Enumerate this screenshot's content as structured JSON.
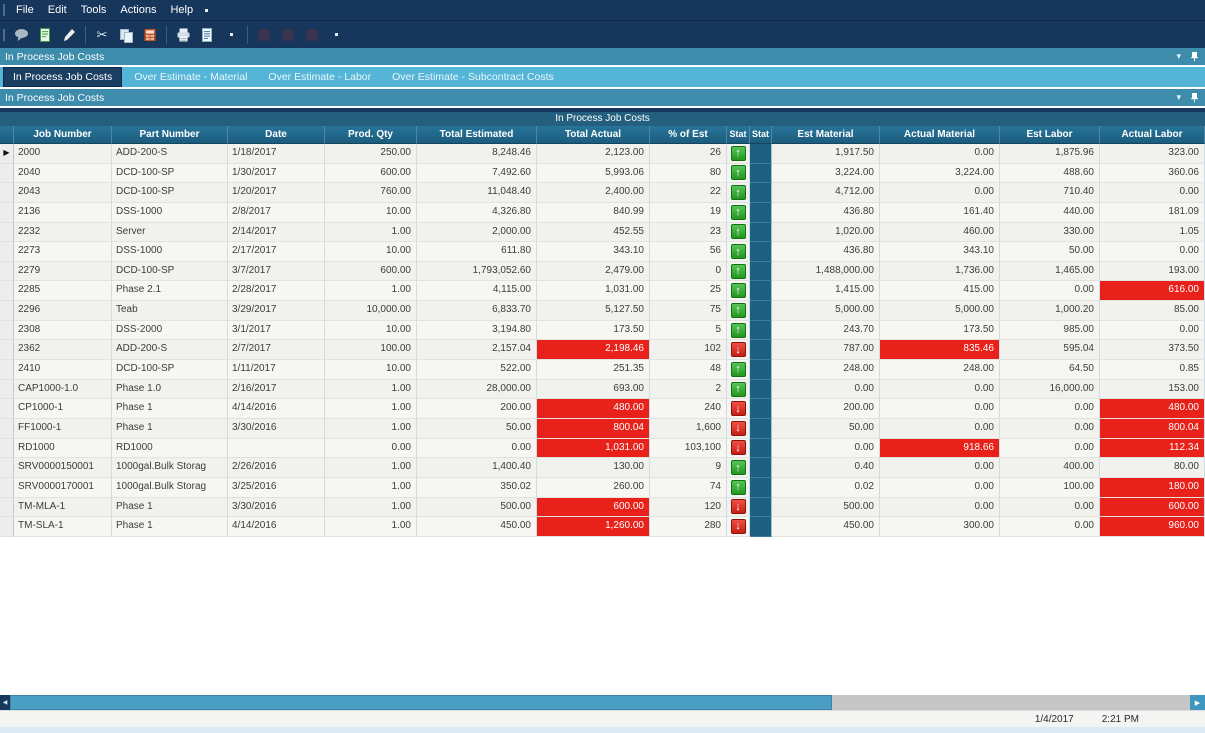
{
  "menu": {
    "items": [
      "File",
      "Edit",
      "Tools",
      "Actions",
      "Help"
    ]
  },
  "toolbar": {
    "icons": [
      "comment-icon",
      "new-record-icon",
      "edit-icon",
      "separator",
      "cut-icon",
      "copy-icon",
      "paste-icon",
      "separator",
      "print-icon",
      "preview-icon",
      "overflow-dot",
      "separator",
      "disabled-icon",
      "disabled-icon",
      "disabled-icon",
      "overflow-dot"
    ]
  },
  "panels": {
    "outer_title": "In Process Job Costs",
    "inner_title": "In Process Job Costs"
  },
  "tabs": [
    {
      "label": "In Process Job Costs",
      "active": true
    },
    {
      "label": "Over Estimate - Material",
      "active": false
    },
    {
      "label": "Over Estimate - Labor",
      "active": false
    },
    {
      "label": "Over Estimate - Subcontract Costs",
      "active": false
    }
  ],
  "grid": {
    "group_title": "In Process Job Costs",
    "columns": [
      "Job Number",
      "Part Number",
      "Date",
      "Prod. Qty",
      "Total Estimated",
      "Total Actual",
      "% of Est",
      "Stat",
      "Stat",
      "Est Material",
      "Actual Material",
      "Est Labor",
      "Actual Labor"
    ],
    "rows": [
      {
        "job": "2000",
        "part": "ADD-200-S",
        "date": "1/18/2017",
        "qty": "250.00",
        "total_est": "8,248.46",
        "total_act": "2,123.00",
        "pct": "26",
        "stat": "up",
        "est_mat": "1,917.50",
        "act_mat": "0.00",
        "est_lab": "1,875.96",
        "act_lab": "323.00",
        "selected": true
      },
      {
        "job": "2040",
        "part": "DCD-100-SP",
        "date": "1/30/2017",
        "qty": "600.00",
        "total_est": "7,492.60",
        "total_act": "5,993.06",
        "pct": "80",
        "stat": "up",
        "est_mat": "3,224.00",
        "act_mat": "3,224.00",
        "est_lab": "488.60",
        "act_lab": "360.06"
      },
      {
        "job": "2043",
        "part": "DCD-100-SP",
        "date": "1/20/2017",
        "qty": "760.00",
        "total_est": "11,048.40",
        "total_act": "2,400.00",
        "pct": "22",
        "stat": "up",
        "est_mat": "4,712.00",
        "act_mat": "0.00",
        "est_lab": "710.40",
        "act_lab": "0.00"
      },
      {
        "job": "2136",
        "part": "DSS-1000",
        "date": "2/8/2017",
        "qty": "10.00",
        "total_est": "4,326.80",
        "total_act": "840.99",
        "pct": "19",
        "stat": "up",
        "est_mat": "436.80",
        "act_mat": "161.40",
        "est_lab": "440.00",
        "act_lab": "181.09"
      },
      {
        "job": "2232",
        "part": "Server",
        "date": "2/14/2017",
        "qty": "1.00",
        "total_est": "2,000.00",
        "total_act": "452.55",
        "pct": "23",
        "stat": "up",
        "est_mat": "1,020.00",
        "act_mat": "460.00",
        "est_lab": "330.00",
        "act_lab": "1.05"
      },
      {
        "job": "2273",
        "part": "DSS-1000",
        "date": "2/17/2017",
        "qty": "10.00",
        "total_est": "611.80",
        "total_act": "343.10",
        "pct": "56",
        "stat": "up",
        "est_mat": "436.80",
        "act_mat": "343.10",
        "est_lab": "50.00",
        "act_lab": "0.00"
      },
      {
        "job": "2279",
        "part": "DCD-100-SP",
        "date": "3/7/2017",
        "qty": "600.00",
        "total_est": "1,793,052.60",
        "total_act": "2,479.00",
        "pct": "0",
        "stat": "up",
        "est_mat": "1,488,000.00",
        "act_mat": "1,736.00",
        "est_lab": "1,465.00",
        "act_lab": "193.00"
      },
      {
        "job": "2285",
        "part": "Phase 2.1",
        "date": "2/28/2017",
        "qty": "1.00",
        "total_est": "4,115.00",
        "total_act": "1,031.00",
        "pct": "25",
        "stat": "up",
        "est_mat": "1,415.00",
        "act_mat": "415.00",
        "est_lab": "0.00",
        "act_lab": "616.00",
        "act_lab_red": true
      },
      {
        "job": "2296",
        "part": "Teab",
        "date": "3/29/2017",
        "qty": "10,000.00",
        "total_est": "6,833.70",
        "total_act": "5,127.50",
        "pct": "75",
        "stat": "up",
        "est_mat": "5,000.00",
        "act_mat": "5,000.00",
        "est_lab": "1,000.20",
        "act_lab": "85.00"
      },
      {
        "job": "2308",
        "part": "DSS-2000",
        "date": "3/1/2017",
        "qty": "10.00",
        "total_est": "3,194.80",
        "total_act": "173.50",
        "pct": "5",
        "stat": "up",
        "est_mat": "243.70",
        "act_mat": "173.50",
        "est_lab": "985.00",
        "act_lab": "0.00"
      },
      {
        "job": "2362",
        "part": "ADD-200-S",
        "date": "2/7/2017",
        "qty": "100.00",
        "total_est": "2,157.04",
        "total_act": "2,198.46",
        "total_act_red": true,
        "pct": "102",
        "stat": "down",
        "est_mat": "787.00",
        "act_mat": "835.46",
        "act_mat_red": true,
        "est_lab": "595.04",
        "act_lab": "373.50"
      },
      {
        "job": "2410",
        "part": "DCD-100-SP",
        "date": "1/11/2017",
        "qty": "10.00",
        "total_est": "522.00",
        "total_act": "251.35",
        "pct": "48",
        "stat": "up",
        "est_mat": "248.00",
        "act_mat": "248.00",
        "est_lab": "64.50",
        "act_lab": "0.85"
      },
      {
        "job": "CAP1000-1.0",
        "part": "Phase 1.0",
        "date": "2/16/2017",
        "qty": "1.00",
        "total_est": "28,000.00",
        "total_act": "693.00",
        "pct": "2",
        "stat": "up",
        "est_mat": "0.00",
        "act_mat": "0.00",
        "est_lab": "16,000.00",
        "act_lab": "153.00"
      },
      {
        "job": "CP1000-1",
        "part": "Phase 1",
        "date": "4/14/2016",
        "qty": "1.00",
        "total_est": "200.00",
        "total_act": "480.00",
        "total_act_red": true,
        "pct": "240",
        "stat": "down",
        "est_mat": "200.00",
        "act_mat": "0.00",
        "est_lab": "0.00",
        "act_lab": "480.00",
        "act_lab_red": true
      },
      {
        "job": "FF1000-1",
        "part": "Phase 1",
        "date": "3/30/2016",
        "qty": "1.00",
        "total_est": "50.00",
        "total_act": "800.04",
        "total_act_red": true,
        "pct": "1,600",
        "stat": "down",
        "est_mat": "50.00",
        "act_mat": "0.00",
        "est_lab": "0.00",
        "act_lab": "800.04",
        "act_lab_red": true
      },
      {
        "job": "RD1000",
        "part": "RD1000",
        "date": "",
        "qty": "0.00",
        "total_est": "0.00",
        "total_act": "1,031.00",
        "total_act_red": true,
        "pct": "103,100",
        "stat": "down",
        "est_mat": "0.00",
        "act_mat": "918.66",
        "act_mat_red": true,
        "est_lab": "0.00",
        "act_lab": "112.34",
        "act_lab_red": true
      },
      {
        "job": "SRV0000150001",
        "part": "1000gal.Bulk Storag",
        "date": "2/26/2016",
        "qty": "1.00",
        "total_est": "1,400.40",
        "total_act": "130.00",
        "pct": "9",
        "stat": "up",
        "est_mat": "0.40",
        "act_mat": "0.00",
        "est_lab": "400.00",
        "act_lab": "80.00"
      },
      {
        "job": "SRV0000170001",
        "part": "1000gal.Bulk Storag",
        "date": "3/25/2016",
        "qty": "1.00",
        "total_est": "350.02",
        "total_act": "260.00",
        "pct": "74",
        "stat": "up",
        "est_mat": "0.02",
        "act_mat": "0.00",
        "est_lab": "100.00",
        "act_lab": "180.00",
        "act_lab_red": true
      },
      {
        "job": "TM-MLA-1",
        "part": "Phase 1",
        "date": "3/30/2016",
        "qty": "1.00",
        "total_est": "500.00",
        "total_act": "600.00",
        "total_act_red": true,
        "pct": "120",
        "stat": "down",
        "est_mat": "500.00",
        "act_mat": "0.00",
        "est_lab": "0.00",
        "act_lab": "600.00",
        "act_lab_red": true
      },
      {
        "job": "TM-SLA-1",
        "part": "Phase 1",
        "date": "4/14/2016",
        "qty": "1.00",
        "total_est": "450.00",
        "total_act": "1,260.00",
        "total_act_red": true,
        "pct": "280",
        "stat": "down",
        "est_mat": "450.00",
        "act_mat": "300.00",
        "est_lab": "0.00",
        "act_lab": "960.00",
        "act_lab_red": true
      }
    ]
  },
  "statusbar": {
    "date": "1/4/2017",
    "time": "2:21 PM"
  },
  "colors": {
    "navy": "#16365c",
    "panel_teal": "#3d8cab",
    "tab_blue": "#55b5d7",
    "header_teal": "#1e6080",
    "green_up": "#33b542",
    "red_down": "#dd2b20",
    "red_cell": "#e8211b",
    "scroll_thumb": "#4a9dc4"
  }
}
